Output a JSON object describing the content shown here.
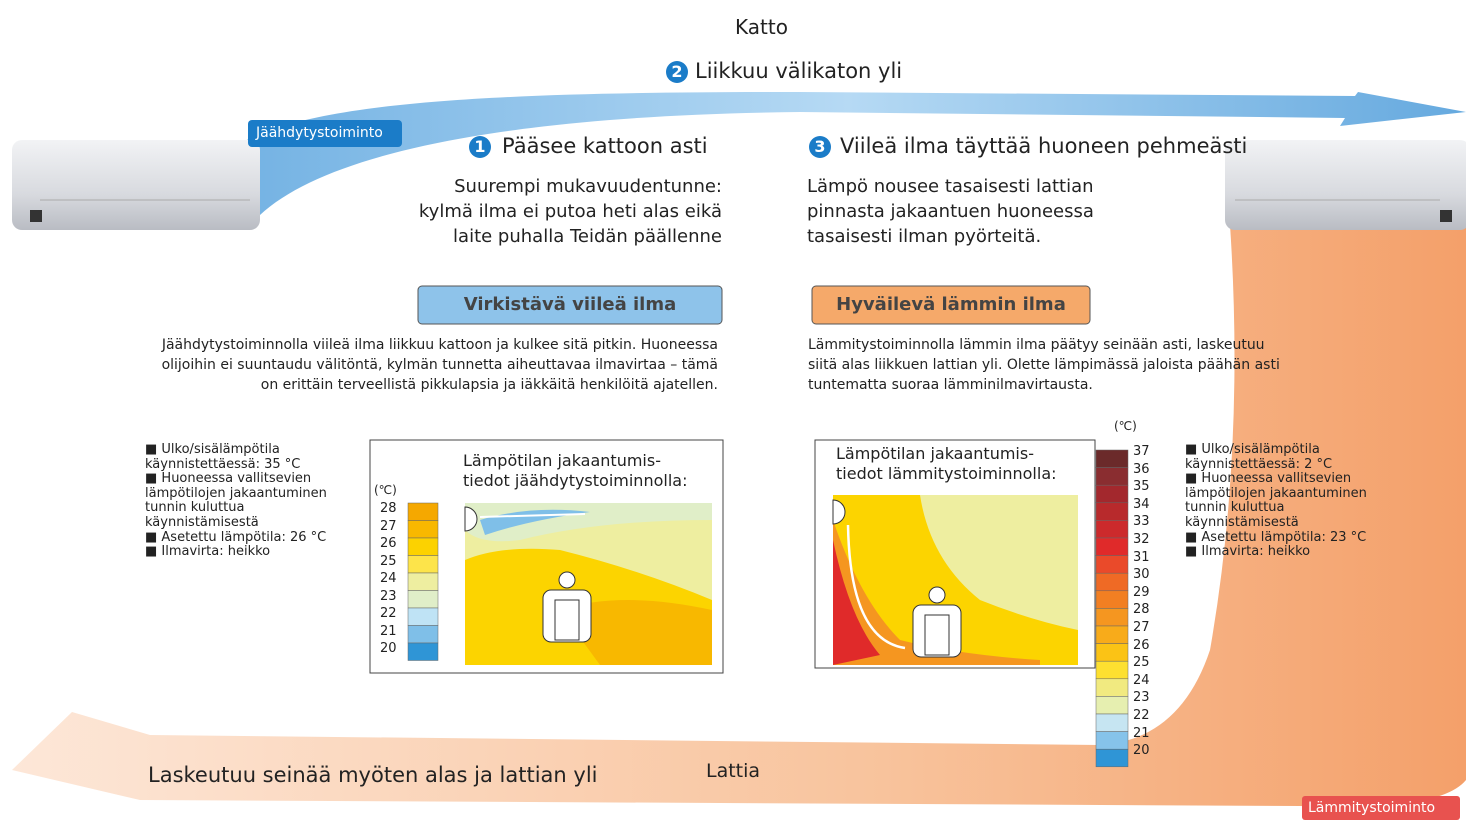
{
  "ceiling_label": "Katto",
  "floor_label": "Lattia",
  "cooling_tag": "Jäähdytystoiminto",
  "heating_tag": "Lämmitystoiminto",
  "steps": [
    {
      "number": 1,
      "label": "Pääsee kattoon asti"
    },
    {
      "number": 2,
      "label": "Liikkuu välikaton yli"
    },
    {
      "number": 3,
      "label": "Viileä ilma täyttää huoneen pehmeästi"
    }
  ],
  "floor_arrow_label": "Laskeutuu seinää myöten alas ja lattian yli",
  "cooling": {
    "intro": [
      "Suurempi mukavuudentunne:",
      "kylmä ilma ei putoa heti alas eikä",
      "laite puhalla Teidän päällenne"
    ],
    "button": "Virkistävä viileä ilma",
    "description": [
      "Jäähdytystoiminnolla viileä ilma liikkuu kattoon ja kulkee sitä pitkin. Huoneessa",
      "olijoihin ei suuntaudu välitöntä, kylmän tunnetta aiheuttavaa ilmavirtaa – tämä",
      "on erittäin terveellistä pikkulapsia ja iäkkäitä henkilöitä ajatellen."
    ],
    "conditions": [
      "■ Ulko/sisälämpötila",
      "käynnistettäessä: 35 °C",
      "■ Huoneessa vallitsevien",
      "lämpötilojen jakaantuminen",
      "tunnin kuluttua",
      "käynnistämisestä",
      "■ Asetettu lämpötila: 26 °C",
      "■ Ilmavirta: heikko"
    ],
    "chart_title": [
      "Lämpötilan jakaantumis-",
      "tiedot jäähdytystoiminnolla:"
    ],
    "unit": "(℃)",
    "scale": [
      28,
      27,
      26,
      25,
      24,
      23,
      22,
      21,
      20
    ]
  },
  "heating": {
    "intro": [
      "Lämpö nousee tasaisesti lattian",
      "pinnasta jakaantuen huoneessa",
      "tasaisesti ilman pyörteitä."
    ],
    "button": "Hyväilevä lämmin ilma",
    "description": [
      "Lämmitystoiminnolla lämmin ilma päätyy seinään asti, laskeutuu",
      "siitä alas liikkuen lattian yli. Olette lämpimässä jaloista päähän asti",
      "tuntematta suoraa lämminilmavirtausta."
    ],
    "conditions": [
      "■ Ulko/sisälämpötila",
      "käynnistettäessä: 2 °C",
      "■ Huoneessa vallitsevien",
      "lämpötilojen jakaantuminen",
      "tunnin kuluttua",
      "käynnistämisestä",
      "■ Asetettu lämpötila: 23 °C",
      "■ Ilmavirta: heikko"
    ],
    "chart_title": [
      "Lämpötilan jakaantumis-",
      "tiedot lämmitystoiminnolla:"
    ],
    "unit": "(℃)",
    "scale": [
      37,
      36,
      35,
      34,
      33,
      32,
      31,
      30,
      29,
      28,
      27,
      26,
      25,
      24,
      23,
      22,
      21,
      20
    ]
  }
}
